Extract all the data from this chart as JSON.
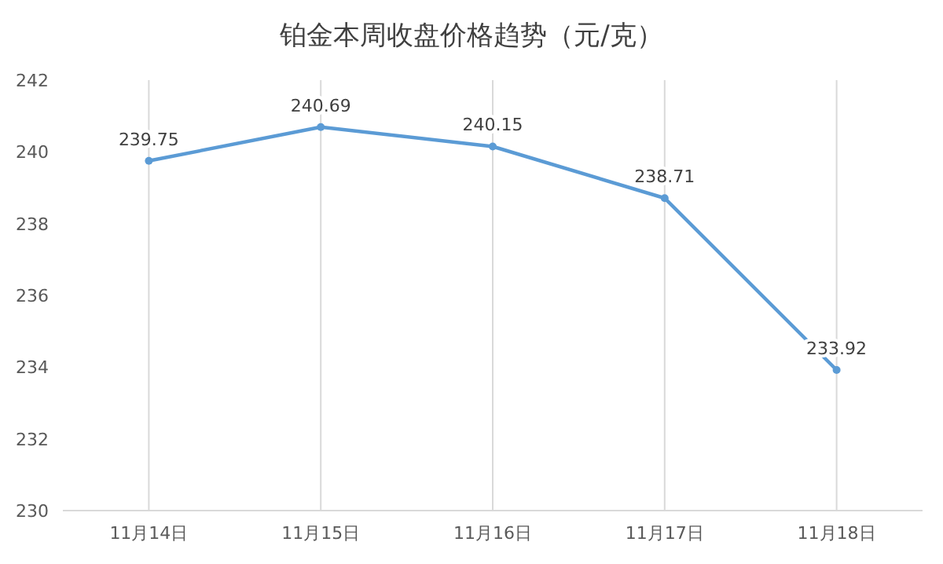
{
  "chart_data": {
    "type": "line",
    "title": "铂金本周收盘价格趋势（元/克）",
    "categories": [
      "11月14日",
      "11月15日",
      "11月16日",
      "11月17日",
      "11月18日"
    ],
    "series": [
      {
        "color": "#5b9bd5",
        "values": [
          239.75,
          240.69,
          240.15,
          238.71,
          233.92
        ]
      }
    ],
    "ylim": [
      230,
      242
    ],
    "yticks": [
      230,
      232,
      234,
      236,
      238,
      240,
      242
    ],
    "grid": "x",
    "marker": "circle",
    "data_labels": true
  }
}
